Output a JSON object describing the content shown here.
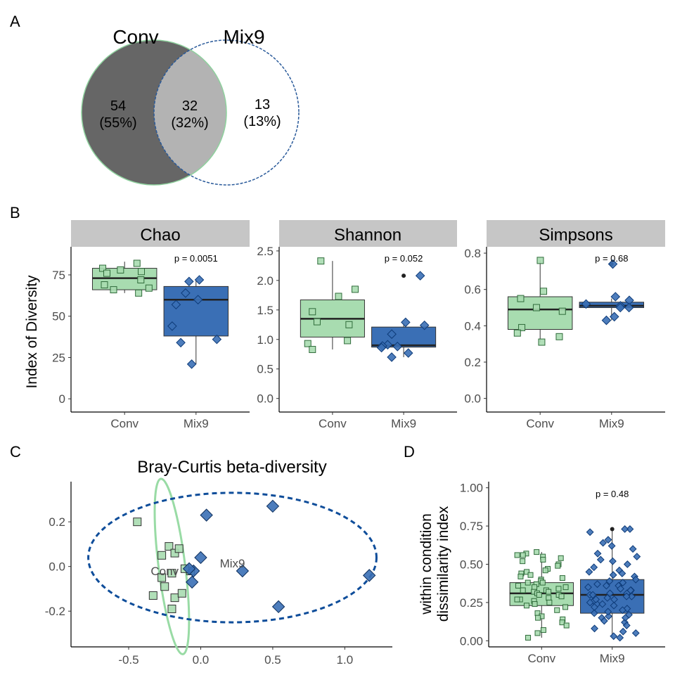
{
  "panel_labels": {
    "a": "A",
    "b": "B",
    "c": "C",
    "d": "D"
  },
  "colors": {
    "conv_fill": "#a8dcb0",
    "conv_stroke": "#2f6b3a",
    "mix9_fill": "#3a6fb5",
    "mix9_stroke": "#0e3b78",
    "venn_conv_only": "#666666",
    "venn_overlap": "#b3b3b3",
    "venn_conv_outline": "#8fd19e",
    "venn_mix9_outline": "#2a5a9a",
    "strip_bg": "#c6c6c6",
    "ellipse_conv": "#99dba5",
    "ellipse_mix9": "#0e4d9a"
  },
  "venn": {
    "labels": [
      "Conv",
      "Mix9"
    ],
    "regions": [
      {
        "count": "54",
        "pct": "(55%)"
      },
      {
        "count": "32",
        "pct": "(32%)"
      },
      {
        "count": "13",
        "pct": "(13%)"
      }
    ]
  },
  "chart_data": [
    {
      "panel": "B",
      "type": "box",
      "title": "Chao",
      "ylabel": "Index of Diversity",
      "categories": [
        "Conv",
        "Mix9"
      ],
      "ylim": [
        -8,
        92
      ],
      "yticks": [
        0,
        25,
        50,
        75
      ],
      "pvalue": "p = 0.0051",
      "boxes": [
        {
          "q1": 66,
          "median": 73,
          "q3": 79,
          "lo": 64,
          "hi": 83,
          "outliers": []
        },
        {
          "q1": 38,
          "median": 60,
          "q3": 68,
          "lo": 21,
          "hi": 72,
          "outliers": []
        }
      ],
      "points": [
        [
          82,
          79,
          78,
          77,
          76,
          72,
          69,
          67,
          66,
          64
        ],
        [
          72,
          71,
          64,
          60,
          57,
          44,
          36,
          34,
          21
        ]
      ]
    },
    {
      "panel": "B",
      "type": "box",
      "title": "Shannon",
      "categories": [
        "Conv",
        "Mix9"
      ],
      "ylim": [
        -0.23,
        2.57
      ],
      "yticks": [
        0.0,
        0.5,
        1.0,
        1.5,
        2.0,
        2.5
      ],
      "pvalue": "p = 0.052",
      "boxes": [
        {
          "q1": 1.04,
          "median": 1.35,
          "q3": 1.67,
          "lo": 0.83,
          "hi": 2.33,
          "outliers": []
        },
        {
          "q1": 0.87,
          "median": 0.9,
          "q3": 1.21,
          "lo": 0.7,
          "hi": 1.27,
          "outliers": [
            2.08
          ]
        }
      ],
      "points": [
        [
          2.33,
          1.85,
          1.73,
          1.47,
          1.3,
          1.25,
          0.98,
          0.93,
          0.83
        ],
        [
          2.08,
          1.29,
          1.24,
          1.09,
          0.91,
          0.89,
          0.88,
          0.86,
          0.77,
          0.7
        ]
      ]
    },
    {
      "panel": "B",
      "type": "box",
      "title": "Simpsons",
      "categories": [
        "Conv",
        "Mix9"
      ],
      "ylim": [
        -0.075,
        0.835
      ],
      "yticks": [
        0.0,
        0.2,
        0.4,
        0.6,
        0.8
      ],
      "pvalue": "p = 0.68",
      "boxes": [
        {
          "q1": 0.38,
          "median": 0.49,
          "q3": 0.56,
          "lo": 0.31,
          "hi": 0.76,
          "outliers": []
        },
        {
          "q1": 0.5,
          "median": 0.51,
          "q3": 0.53,
          "lo": 0.43,
          "hi": 0.55,
          "outliers": [
            0.74
          ]
        }
      ],
      "points": [
        [
          0.76,
          0.59,
          0.55,
          0.5,
          0.48,
          0.39,
          0.36,
          0.34,
          0.31
        ],
        [
          0.74,
          0.56,
          0.54,
          0.52,
          0.51,
          0.5,
          0.5,
          0.45,
          0.43
        ]
      ]
    },
    {
      "panel": "C",
      "type": "scatter",
      "title": "Bray-Curtis beta-diversity",
      "xlim": [
        -0.9,
        1.33
      ],
      "ylim": [
        -0.36,
        0.38
      ],
      "xticks": [
        -0.5,
        0.0,
        0.5,
        1.0
      ],
      "yticks": [
        0.2,
        0.0,
        -0.2
      ],
      "series": [
        {
          "name": "Conv",
          "points": [
            [
              -0.44,
              0.2
            ],
            [
              -0.27,
              0.05
            ],
            [
              -0.22,
              0.09
            ],
            [
              -0.18,
              0.06
            ],
            [
              -0.15,
              0.08
            ],
            [
              -0.2,
              -0.03
            ],
            [
              -0.25,
              -0.09
            ],
            [
              -0.33,
              -0.13
            ],
            [
              -0.18,
              -0.14
            ],
            [
              -0.13,
              -0.12
            ],
            [
              -0.2,
              -0.19
            ],
            [
              -0.27,
              -0.05
            ],
            [
              -0.07,
              -0.02
            ],
            [
              -0.11,
              -0.01
            ]
          ],
          "ellipse": {
            "cx": -0.2,
            "cy": 0.0,
            "rx": 0.4,
            "ry": 0.09,
            "angle_deg": -79
          }
        },
        {
          "name": "Mix9",
          "points": [
            [
              0.04,
              0.23
            ],
            [
              0.5,
              0.27
            ],
            [
              0.0,
              0.04
            ],
            [
              -0.05,
              -0.02
            ],
            [
              -0.08,
              -0.01
            ],
            [
              -0.06,
              -0.07
            ],
            [
              0.29,
              -0.02
            ],
            [
              0.54,
              -0.18
            ],
            [
              1.17,
              -0.04
            ]
          ],
          "ellipse": {
            "cx": 0.22,
            "cy": 0.04,
            "rx": 1.0,
            "ry": 0.29,
            "angle_deg": 0
          }
        }
      ],
      "annotations": [
        {
          "text": "Conv",
          "x": -0.25,
          "y": -0.02
        },
        {
          "text": "Mix9",
          "x": 0.22,
          "y": 0.015
        }
      ]
    },
    {
      "panel": "D",
      "type": "box",
      "ylabel_lines": [
        "within condition",
        "dissimilarity index"
      ],
      "categories": [
        "Conv",
        "Mix9"
      ],
      "ylim": [
        -0.04,
        1.04
      ],
      "yticks": [
        0.0,
        0.25,
        0.5,
        0.75,
        1.0
      ],
      "ytick_labels": [
        "0.00",
        "0.25",
        "0.50",
        "0.75",
        "1.00"
      ],
      "pvalue": "p = 0.48",
      "boxes": [
        {
          "q1": 0.23,
          "median": 0.31,
          "q3": 0.38,
          "lo": 0.02,
          "hi": 0.58,
          "outliers": []
        },
        {
          "q1": 0.18,
          "median": 0.3,
          "q3": 0.4,
          "lo": 0.02,
          "hi": 0.73,
          "outliers": [
            0.73
          ]
        }
      ],
      "points": [
        [
          0.58,
          0.57,
          0.56,
          0.56,
          0.55,
          0.54,
          0.53,
          0.52,
          0.5,
          0.49,
          0.47,
          0.46,
          0.45,
          0.44,
          0.43,
          0.41,
          0.4,
          0.39,
          0.38,
          0.38,
          0.37,
          0.36,
          0.35,
          0.35,
          0.34,
          0.33,
          0.32,
          0.32,
          0.31,
          0.3,
          0.3,
          0.29,
          0.28,
          0.27,
          0.26,
          0.25,
          0.24,
          0.23,
          0.22,
          0.2,
          0.18,
          0.16,
          0.14,
          0.12,
          0.1,
          0.07,
          0.05,
          0.02,
          0.15,
          0.27,
          0.33,
          0.42
        ],
        [
          0.73,
          0.73,
          0.71,
          0.66,
          0.64,
          0.62,
          0.6,
          0.57,
          0.55,
          0.53,
          0.5,
          0.48,
          0.46,
          0.45,
          0.43,
          0.42,
          0.4,
          0.39,
          0.38,
          0.37,
          0.36,
          0.35,
          0.34,
          0.33,
          0.32,
          0.31,
          0.3,
          0.29,
          0.28,
          0.27,
          0.26,
          0.25,
          0.24,
          0.23,
          0.22,
          0.21,
          0.2,
          0.18,
          0.17,
          0.16,
          0.15,
          0.13,
          0.12,
          0.1,
          0.08,
          0.06,
          0.05,
          0.03,
          0.02,
          0.3,
          0.27,
          0.33,
          0.19,
          0.36,
          0.24,
          0.31,
          0.15,
          0.44,
          0.29,
          0.52
        ]
      ]
    }
  ]
}
